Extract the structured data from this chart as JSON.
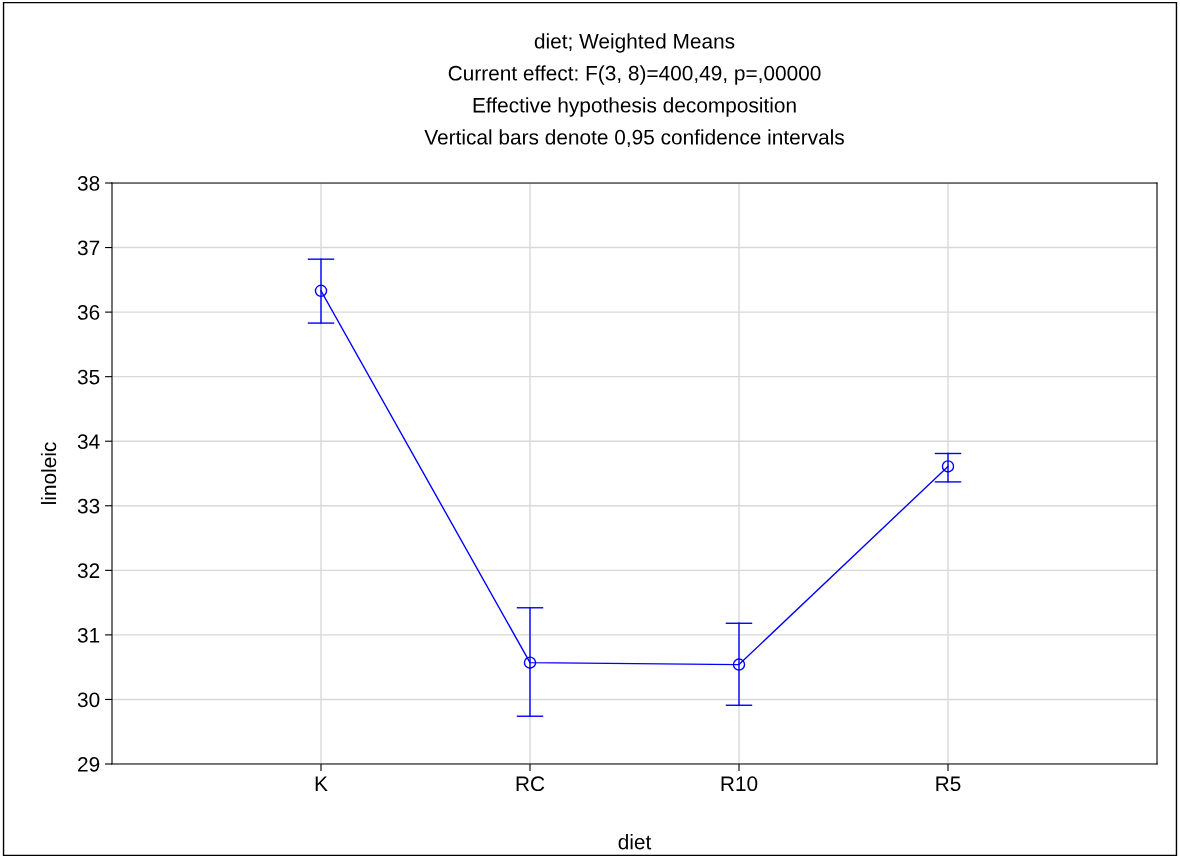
{
  "chart_data": {
    "type": "line",
    "title": "diet; Weighted Means",
    "subtitle": "Current effect: F(3, 8)=400,49, p=,00000",
    "annotations": [
      "Effective hypothesis decomposition",
      "Vertical bars denote 0,95 confidence intervals"
    ],
    "xlabel": "diet",
    "ylabel": "linoleic",
    "categories": [
      "K",
      "RC",
      "R10",
      "R5"
    ],
    "series": [
      {
        "color": "#0000ff",
        "values": [
          36.33,
          30.57,
          30.54,
          33.61
        ],
        "errors": [
          [
            35.83,
            36.82
          ],
          [
            29.74,
            31.42
          ],
          [
            29.91,
            31.18
          ],
          [
            33.37,
            33.81
          ]
        ]
      }
    ],
    "ylim": [
      29,
      38
    ],
    "yticks": [
      29,
      30,
      31,
      32,
      33,
      34,
      35,
      36,
      37,
      38
    ],
    "grid": true,
    "marker": "circle",
    "line_style": "solid",
    "legend": false
  }
}
